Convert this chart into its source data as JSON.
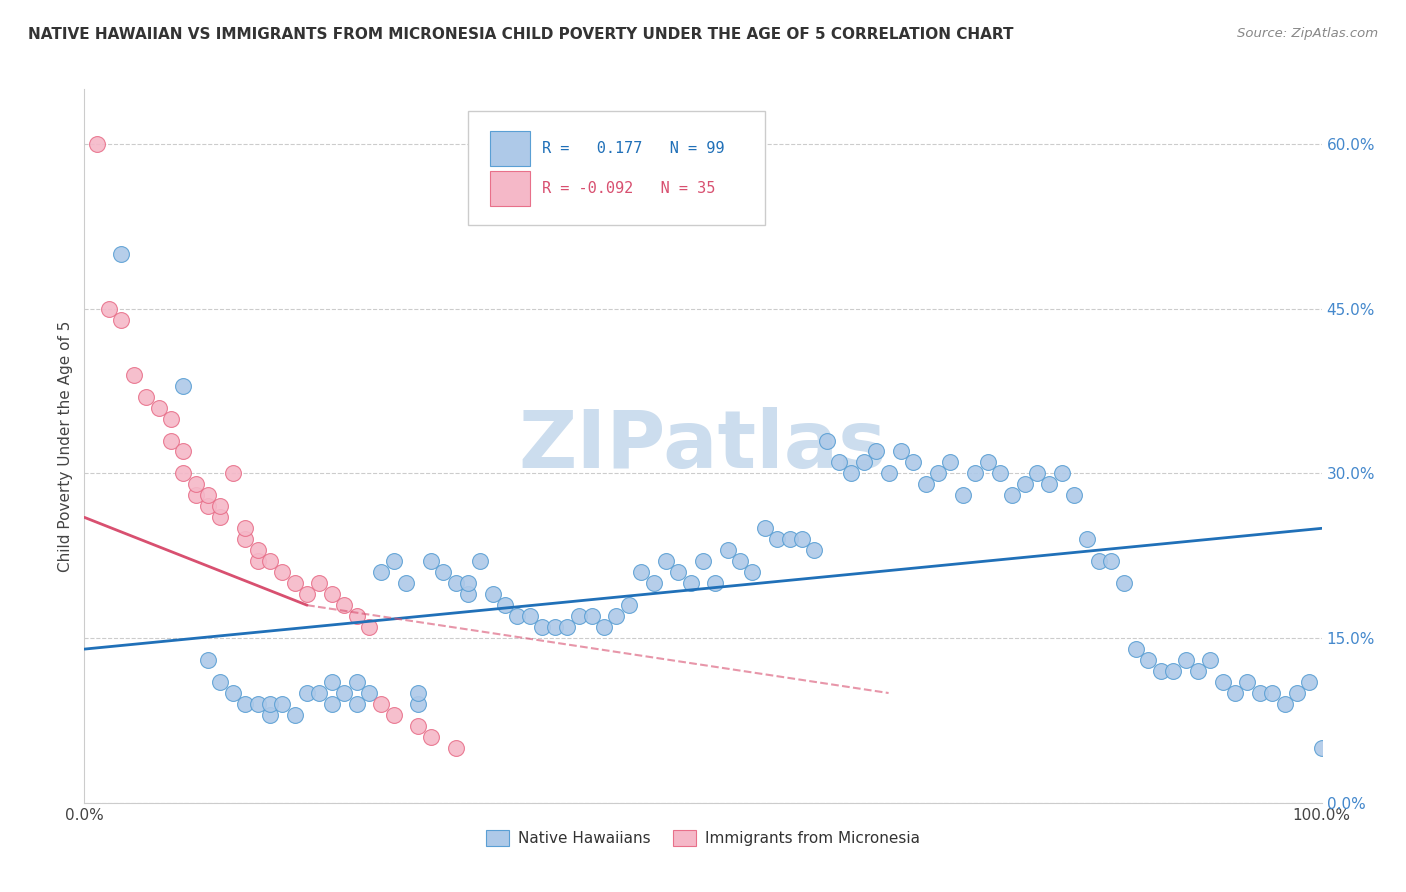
{
  "title": "NATIVE HAWAIIAN VS IMMIGRANTS FROM MICRONESIA CHILD POVERTY UNDER THE AGE OF 5 CORRELATION CHART",
  "source": "Source: ZipAtlas.com",
  "ylabel": "Child Poverty Under the Age of 5",
  "xlim": [
    0,
    100
  ],
  "ylim": [
    0,
    65
  ],
  "ytick_vals": [
    0,
    15,
    30,
    45,
    60
  ],
  "ytick_labels": [
    "0.0%",
    "15.0%",
    "30.0%",
    "45.0%",
    "60.0%"
  ],
  "xtick_vals": [
    0,
    100
  ],
  "xtick_labels": [
    "0.0%",
    "100.0%"
  ],
  "legend_label_blue": "Native Hawaiians",
  "legend_label_pink": "Immigrants from Micronesia",
  "R_blue": "0.177",
  "N_blue": "99",
  "R_pink": "-0.092",
  "N_pink": "35",
  "blue_dot_color": "#aec9e8",
  "blue_edge_color": "#5a9fd4",
  "pink_dot_color": "#f5b8c8",
  "pink_edge_color": "#e8708a",
  "blue_line_color": "#2070b8",
  "pink_line_color": "#d85070",
  "title_color": "#333333",
  "source_color": "#888888",
  "ylabel_color": "#444444",
  "ytick_color": "#4488cc",
  "xtick_color": "#444444",
  "grid_color": "#cccccc",
  "watermark_color": "#ccddee",
  "blue_x": [
    3,
    8,
    10,
    11,
    12,
    13,
    14,
    15,
    15,
    16,
    17,
    18,
    19,
    20,
    20,
    21,
    22,
    22,
    23,
    24,
    25,
    26,
    27,
    27,
    28,
    29,
    30,
    31,
    31,
    32,
    33,
    34,
    35,
    36,
    37,
    38,
    39,
    40,
    41,
    42,
    43,
    44,
    45,
    46,
    47,
    48,
    49,
    50,
    51,
    52,
    53,
    54,
    55,
    56,
    57,
    58,
    59,
    60,
    61,
    62,
    63,
    64,
    65,
    66,
    67,
    68,
    69,
    70,
    71,
    72,
    73,
    74,
    75,
    76,
    77,
    78,
    79,
    80,
    81,
    82,
    83,
    84,
    85,
    86,
    87,
    88,
    89,
    90,
    91,
    92,
    93,
    94,
    95,
    96,
    97,
    98,
    99,
    100,
    101
  ],
  "blue_y": [
    50,
    38,
    13,
    11,
    10,
    9,
    9,
    8,
    9,
    9,
    8,
    10,
    10,
    9,
    11,
    10,
    9,
    11,
    10,
    21,
    22,
    20,
    9,
    10,
    22,
    21,
    20,
    19,
    20,
    22,
    19,
    18,
    17,
    17,
    16,
    16,
    16,
    17,
    17,
    16,
    17,
    18,
    21,
    20,
    22,
    21,
    20,
    22,
    20,
    23,
    22,
    21,
    25,
    24,
    24,
    24,
    23,
    33,
    31,
    30,
    31,
    32,
    30,
    32,
    31,
    29,
    30,
    31,
    28,
    30,
    31,
    30,
    28,
    29,
    30,
    29,
    30,
    28,
    24,
    22,
    22,
    20,
    14,
    13,
    12,
    12,
    13,
    12,
    13,
    11,
    10,
    11,
    10,
    10,
    9,
    10,
    11,
    5,
    5
  ],
  "pink_x": [
    1,
    2,
    3,
    4,
    5,
    6,
    7,
    7,
    8,
    8,
    9,
    9,
    10,
    10,
    11,
    11,
    12,
    13,
    13,
    14,
    14,
    15,
    16,
    17,
    18,
    19,
    20,
    21,
    22,
    23,
    24,
    25,
    27,
    28,
    30
  ],
  "pink_y": [
    60,
    45,
    44,
    39,
    37,
    36,
    33,
    35,
    30,
    32,
    28,
    29,
    27,
    28,
    26,
    27,
    30,
    24,
    25,
    22,
    23,
    22,
    21,
    20,
    19,
    20,
    19,
    18,
    17,
    16,
    9,
    8,
    7,
    6,
    5
  ],
  "blue_line_x0": 0,
  "blue_line_x1": 100,
  "blue_line_y0": 14,
  "blue_line_y1": 25,
  "pink_line_solid_x0": 0,
  "pink_line_solid_x1": 18,
  "pink_line_solid_y0": 26,
  "pink_line_solid_y1": 18,
  "pink_line_dash_x0": 18,
  "pink_line_dash_x1": 65,
  "pink_line_dash_y0": 18,
  "pink_line_dash_y1": 10
}
